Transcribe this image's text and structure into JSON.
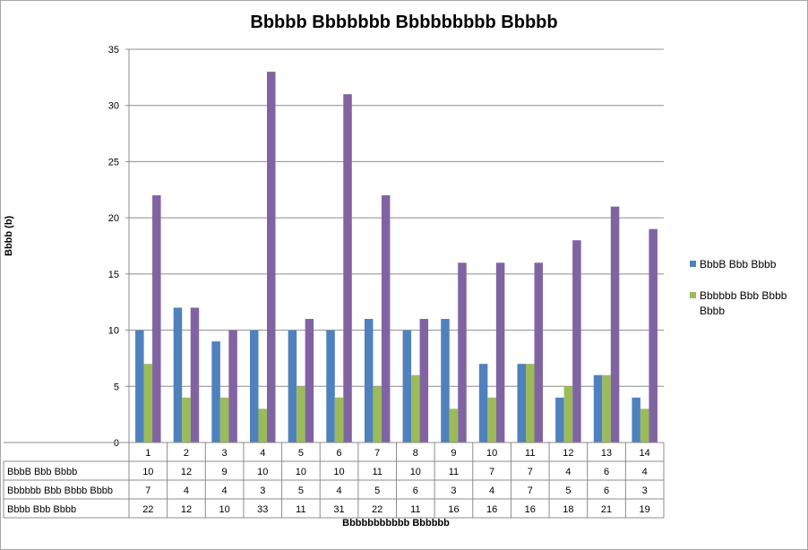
{
  "chart_data": {
    "type": "bar",
    "title": "Bbbbb Bbbbbbb Bbbbbbbbb Bbbbb",
    "xlabel": "Bbbbbbbbbbb Bbbbbb",
    "ylabel": "Bbbb (b)",
    "ylim": [
      0,
      35
    ],
    "yticks": [
      0,
      5,
      10,
      15,
      20,
      25,
      30,
      35
    ],
    "grid": true,
    "legend_position": "right",
    "categories": [
      "1",
      "2",
      "3",
      "4",
      "5",
      "6",
      "7",
      "8",
      "9",
      "10",
      "11",
      "12",
      "13",
      "14"
    ],
    "series": [
      {
        "name": "BbbB Bbb Bbbb",
        "color": "#4f81bd",
        "values": [
          10,
          12,
          9,
          10,
          10,
          10,
          11,
          10,
          11,
          7,
          7,
          4,
          6,
          4
        ]
      },
      {
        "name": "Bbbbbb Bbb Bbbb Bbbb",
        "color": "#9bbb59",
        "values": [
          7,
          4,
          4,
          3,
          5,
          4,
          5,
          6,
          3,
          4,
          7,
          5,
          6,
          3
        ]
      },
      {
        "name": "Bbbb Bbb Bbbb",
        "color": "#8064a2",
        "values": [
          22,
          12,
          10,
          33,
          11,
          31,
          22,
          11,
          16,
          16,
          16,
          18,
          21,
          19
        ]
      }
    ],
    "data_table": true
  },
  "legend": {
    "entries": [
      {
        "name": "BbbB Bbb Bbbb",
        "color": "#4f81bd"
      },
      {
        "name": "Bbbbbb Bbb Bbbb Bbbb",
        "color": "#9bbb59"
      }
    ]
  }
}
